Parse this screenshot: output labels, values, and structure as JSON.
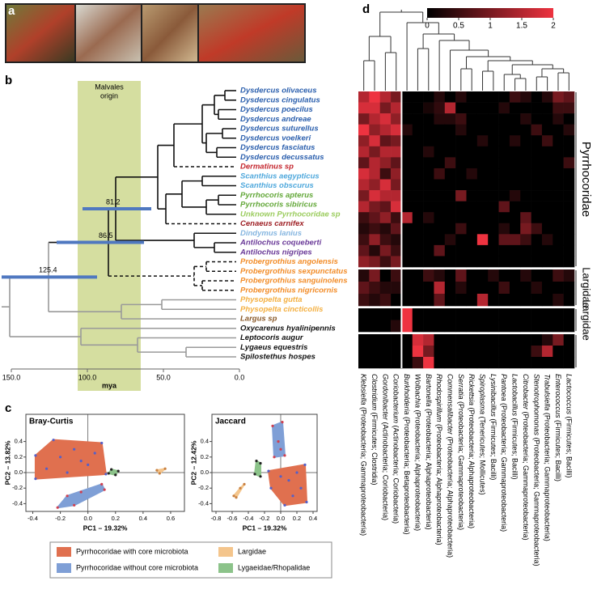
{
  "panel_letters": [
    "a",
    "b",
    "c",
    "d"
  ],
  "tree": {
    "band_label": [
      "Malvales",
      "origin"
    ],
    "axis_label": "mya",
    "axis_ticks": [
      "150.0",
      "100.0",
      "50.0",
      "0.0"
    ],
    "node_labels": [
      "81.2",
      "86.5",
      "125.4"
    ],
    "tips": [
      {
        "name": "Dysdercus olivaceus",
        "color": "#2b5fad"
      },
      {
        "name": "Dysdercus cingulatus",
        "color": "#2b5fad"
      },
      {
        "name": "Dysdercus poecilus",
        "color": "#2b5fad"
      },
      {
        "name": "Dysdercus andreae",
        "color": "#2b5fad"
      },
      {
        "name": "Dysdercus suturellus",
        "color": "#2b5fad"
      },
      {
        "name": "Dysdercus voelkeri",
        "color": "#2b5fad"
      },
      {
        "name": "Dysdercus fasciatus",
        "color": "#2b5fad"
      },
      {
        "name": "Dysdercus decussatus",
        "color": "#2b5fad"
      },
      {
        "name": "Dermatinus sp",
        "color": "#c4262e"
      },
      {
        "name": "Scanthius aegypticus",
        "color": "#4fa8dc"
      },
      {
        "name": "Scanthius obscurus",
        "color": "#4fa8dc"
      },
      {
        "name": "Pyrrhocoris apterus",
        "color": "#64a83a"
      },
      {
        "name": "Pyrrhocoris sibiricus",
        "color": "#64a83a"
      },
      {
        "name": "Unknown Pyrrhocoridae sp",
        "color": "#9bcc5e"
      },
      {
        "name": "Cenaeus carnifex",
        "color": "#9e1f24"
      },
      {
        "name": "Dindymus lanius",
        "color": "#86b6e0"
      },
      {
        "name": "Antilochus coqueberti",
        "color": "#6a3a98"
      },
      {
        "name": "Antilochus nigripes",
        "color": "#6a3a98"
      },
      {
        "name": "Probergrothius angolensis",
        "color": "#f28c28"
      },
      {
        "name": "Probergrothius sexpunctatus",
        "color": "#f28c28"
      },
      {
        "name": "Probergrothius sanguinolens",
        "color": "#f28c28"
      },
      {
        "name": "Probergrothius nigricornis",
        "color": "#f28c28"
      },
      {
        "name": "Physopelta gutta",
        "color": "#f4b042"
      },
      {
        "name": "Physopelta cincticollis",
        "color": "#f4b042"
      },
      {
        "name": "Largus sp",
        "color": "#8a5a2a"
      },
      {
        "name": "Oxycarenus hyalinipennis",
        "color": "#111111"
      },
      {
        "name": "Leptocoris augur",
        "color": "#111111"
      },
      {
        "name": "Lygaeus equestris",
        "color": "#111111"
      },
      {
        "name": "Spilostethus hospes",
        "color": "#111111"
      }
    ]
  },
  "pcoa": {
    "legend": [
      {
        "name": "Pyrrhocoridae with core microbiota",
        "color": "#e0704f"
      },
      {
        "name": "Pyrrhocoridae without core microbiota",
        "color": "#7f9fd6"
      },
      {
        "name": "Largidae",
        "color": "#f4c58c"
      },
      {
        "name": "Lygaeidae/Rhopalidae",
        "color": "#8cc38a"
      }
    ],
    "plots": [
      {
        "type": "scatter",
        "title": "Bray-Curtis",
        "xlabel": "PC1 – 19.32%",
        "ylabel": "PC2 – 13.82%",
        "xlim": [
          -0.45,
          0.7
        ],
        "ylim": [
          -0.5,
          0.75
        ],
        "xticks": [
          -0.4,
          -0.2,
          {
            "value": 0,
            "label": "0.0"
          },
          0.2,
          0.4,
          0.6
        ],
        "yticks": [
          -0.4,
          -0.2,
          {
            "value": 0,
            "label": "0.0"
          },
          0.2,
          0.4
        ],
        "series": [
          {
            "color": "#e0704f",
            "point_color": "#5560c8",
            "points": [
              [
                -0.25,
                0.42
              ],
              [
                0.1,
                0.38
              ],
              [
                0.13,
                -0.02
              ],
              [
                -0.38,
                -0.08
              ],
              [
                -0.38,
                0.22
              ],
              [
                -0.2,
                0.2
              ],
              [
                -0.1,
                0.3
              ],
              [
                0,
                0.1
              ],
              [
                -0.3,
                0.05
              ],
              [
                -0.15,
                0
              ],
              [
                0.05,
                0.25
              ],
              [
                -0.05,
                0.15
              ]
            ]
          },
          {
            "color": "#7f9fd6",
            "point_color": "#d04050",
            "points": [
              [
                -0.22,
                -0.45
              ],
              [
                -0.1,
                -0.42
              ],
              [
                0.12,
                -0.22
              ],
              [
                0.1,
                -0.15
              ],
              [
                -0.05,
                -0.25
              ],
              [
                -0.15,
                -0.3
              ]
            ]
          },
          {
            "color": "#8cc38a",
            "point_color": "#222222",
            "points": [
              [
                0.15,
                -0.01
              ],
              [
                0.22,
                0.02
              ],
              [
                0.17,
                0.04
              ],
              [
                0.2,
                -0.03
              ]
            ]
          },
          {
            "color": "#f4c58c",
            "point_color": "#c88040",
            "points": [
              [
                0.5,
                0.03
              ],
              [
                0.56,
                0.05
              ],
              [
                0.52,
                -0.01
              ]
            ]
          }
        ]
      },
      {
        "type": "scatter",
        "title": "Jaccard",
        "xlabel": "PC1 – 19.32%",
        "ylabel": "PC2 – 12.42%",
        "xlim": [
          -0.85,
          0.45
        ],
        "ylim": [
          -0.5,
          0.75
        ],
        "xticks": [
          -0.8,
          -0.6,
          -0.4,
          -0.2,
          {
            "value": 0,
            "label": "0.0"
          },
          0.2,
          0.4
        ],
        "yticks": [
          -0.4,
          -0.2,
          {
            "value": 0,
            "label": "0.0"
          },
          0.2,
          0.4
        ],
        "series": [
          {
            "color": "#e0704f",
            "point_color": "#5560c8",
            "points": [
              [
                -0.15,
                0.02
              ],
              [
                0.3,
                0.1
              ],
              [
                0.32,
                -0.38
              ],
              [
                0.05,
                -0.42
              ],
              [
                -0.12,
                -0.2
              ],
              [
                0.1,
                -0.1
              ],
              [
                0.2,
                0
              ],
              [
                0.25,
                -0.2
              ],
              [
                0,
                -0.05
              ],
              [
                0.15,
                -0.3
              ]
            ]
          },
          {
            "color": "#7f9fd6",
            "point_color": "#d04050",
            "points": [
              [
                -0.1,
                0.6
              ],
              [
                0.02,
                0.65
              ],
              [
                0.05,
                0.22
              ],
              [
                -0.08,
                0.2
              ],
              [
                -0.03,
                0.4
              ],
              [
                0,
                0.3
              ]
            ]
          },
          {
            "color": "#8cc38a",
            "point_color": "#222222",
            "points": [
              [
                -0.3,
                0.15
              ],
              [
                -0.25,
                0.12
              ],
              [
                -0.25,
                -0.05
              ],
              [
                -0.32,
                -0.02
              ]
            ]
          },
          {
            "color": "#f4c58c",
            "point_color": "#c88040",
            "points": [
              [
                -0.55,
                -0.32
              ],
              [
                -0.5,
                -0.2
              ],
              [
                -0.45,
                -0.15
              ],
              [
                -0.58,
                -0.3
              ]
            ]
          }
        ]
      }
    ]
  },
  "heatmap": {
    "clim": [
      0,
      2
    ],
    "colorbar_ticks": [
      0,
      0.5,
      1,
      1.5,
      2
    ],
    "columns": [
      {
        "genus": "Klebsiella",
        "taxon": " (Proteobacteria; Gammaproteobacteria)"
      },
      {
        "genus": "Clostridium",
        "taxon": " (Firmicutes; Clostridia)"
      },
      {
        "genus": "Gordonibacter",
        "taxon": " (Actinobacteria; Coriobacteria)"
      },
      {
        "genus": "Coriobacterium",
        "taxon": " (Actinobacteria; Coriobacteria)"
      },
      {
        "genus": "Burkholderia",
        "taxon": " (Proteobacteria; Betaproteobacteria)"
      },
      {
        "genus": "Wolbachia",
        "taxon": " (Proteobacteria; Alphaproteobacteria)"
      },
      {
        "genus": "Bartonella",
        "taxon": " (Proteobacteria; Alphaproteobacteria)"
      },
      {
        "genus": "Rhodospirillum",
        "taxon": " (Proteobacteria; Alphaproteobacteria)"
      },
      {
        "genus": "Commensalibacter",
        "taxon": " (Proteobacteria; Alphaproteobacteria)"
      },
      {
        "genus": "Serratia",
        "taxon": " (Proteobacteria; Gammaproteobacteria)"
      },
      {
        "genus": "Rickettsia",
        "taxon": " (Proteobacteria; Alphaproteobacteria)"
      },
      {
        "genus": "Spiroplasma",
        "taxon": " (Tenericutes; Mollicutes)"
      },
      {
        "genus": "Lysinibacillus",
        "taxon": " (Firmicutes; Bacilli)"
      },
      {
        "genus": "Pantoea",
        "taxon": " (Proteobacteria; Gammaproteobacteria)"
      },
      {
        "genus": "Lactobacillus",
        "taxon": " (Firmicutes; Bacilli)"
      },
      {
        "genus": "Citrobacter",
        "taxon": " (Proteobacteria; Gammaproteobacteria)"
      },
      {
        "genus": "Stenotrophomonas",
        "taxon": " (Proteobacteria; Gammaproteobacteria)"
      },
      {
        "genus": "Trabulsiella",
        "taxon": " (Proteobacteria; Gammaproteobacteria)"
      },
      {
        "genus": "Enterococcus",
        "taxon": " (Firmicutes; Bacilli)"
      },
      {
        "genus": "Lactococcus",
        "taxon": " (Firmicutes; Bacilli)"
      }
    ],
    "groups": [
      {
        "label": "Pyrrhocoridae",
        "rows": [
          [
            1.5,
            2,
            1.5,
            1,
            0,
            0,
            0,
            0.3,
            0,
            0.3,
            0,
            0,
            0,
            0,
            0.5,
            0.3,
            0,
            0.3,
            1,
            0.8
          ],
          [
            1.8,
            1.8,
            1,
            1.5,
            0,
            0,
            0.2,
            0.4,
            1.5,
            0,
            0,
            0,
            0,
            0.3,
            0,
            0,
            0,
            0,
            0.5,
            0.5
          ],
          [
            1,
            1.5,
            1.8,
            1.2,
            0,
            0,
            0,
            0.3,
            0.3,
            0.5,
            0,
            0,
            0,
            0,
            0,
            0.3,
            0,
            0,
            0.3,
            0
          ],
          [
            2,
            1.2,
            1.5,
            1.8,
            0.3,
            0,
            0,
            0,
            0,
            0.3,
            0,
            0,
            0,
            0,
            0,
            0,
            0.5,
            0,
            0,
            0.3
          ],
          [
            1.2,
            1.8,
            0.8,
            1,
            0,
            0,
            0,
            0,
            0,
            0,
            0,
            0.3,
            0,
            0,
            0.3,
            0,
            0,
            0.5,
            0,
            0
          ],
          [
            1.5,
            1,
            1.5,
            1.5,
            0,
            0,
            0.3,
            0,
            0,
            0,
            0,
            0,
            0,
            0,
            0,
            0,
            0,
            0,
            0,
            0
          ],
          [
            0.8,
            1.5,
            1.2,
            0.8,
            0,
            0,
            0,
            0,
            0.5,
            0,
            0,
            0,
            0,
            0,
            0,
            0,
            0,
            0,
            0,
            0.5
          ],
          [
            1.8,
            1.5,
            0.5,
            1.2,
            0,
            0,
            0,
            0.5,
            0,
            0,
            0.3,
            0,
            0,
            0,
            0,
            0,
            0,
            0,
            0,
            0
          ],
          [
            1.5,
            1.2,
            1.8,
            1,
            0,
            0,
            0,
            0,
            0,
            0,
            0,
            0,
            0,
            0,
            0,
            0,
            0,
            0,
            0,
            0
          ],
          [
            1,
            1.8,
            1.5,
            1.5,
            0,
            0,
            0,
            0,
            0,
            1,
            0,
            0,
            0,
            0,
            0.3,
            0,
            0,
            0,
            0,
            0
          ],
          [
            1.5,
            1,
            0.8,
            1.8,
            0,
            0,
            0,
            0,
            0,
            0,
            0,
            0,
            0,
            0.8,
            0,
            0,
            0,
            0,
            0,
            0
          ],
          [
            0.5,
            0.8,
            1.2,
            0.5,
            1.5,
            0,
            0.3,
            0,
            0,
            0,
            0,
            0,
            0,
            0,
            0,
            0.8,
            0,
            0,
            0,
            0
          ],
          [
            0.3,
            0.5,
            0.3,
            0.8,
            0,
            0,
            0,
            0,
            0,
            0.5,
            0,
            0,
            0,
            0.3,
            0,
            1,
            0.5,
            0,
            0,
            0
          ],
          [
            0.5,
            1.2,
            0.5,
            0.3,
            0,
            0,
            0,
            0,
            0.3,
            0,
            0,
            2,
            0,
            0.8,
            0.8,
            0.5,
            0,
            0.3,
            0,
            0
          ],
          [
            0.8,
            0.3,
            1,
            0.5,
            0,
            0,
            0,
            0.8,
            0,
            0,
            0,
            0,
            0,
            0,
            0,
            0,
            0,
            0,
            0,
            0
          ],
          [
            1.2,
            1,
            0.5,
            1,
            0,
            0,
            0,
            0,
            0,
            0,
            0,
            0,
            0,
            0,
            0,
            0,
            0,
            0,
            0,
            0
          ]
        ]
      },
      {
        "label": "Largidae",
        "rows": [
          [
            0.3,
            1,
            0,
            0.5,
            0,
            0,
            0.5,
            0.3,
            0,
            0.8,
            0,
            0,
            0.3,
            0,
            0,
            0.3,
            0,
            0,
            0.5,
            0.3
          ],
          [
            0.8,
            0.5,
            0.3,
            0.3,
            0,
            0,
            0,
            1.5,
            0,
            0.3,
            0,
            0,
            0,
            0.5,
            0,
            0,
            0.3,
            0,
            0,
            0
          ],
          [
            0.5,
            0.3,
            0.5,
            0,
            0,
            0,
            0,
            0.8,
            0,
            0,
            0,
            1.5,
            0,
            0,
            0,
            0,
            0,
            0,
            0.3,
            0
          ]
        ]
      },
      {
        "label": "Largidae",
        "rows": [
          [
            0,
            0,
            0,
            0,
            2,
            0,
            0,
            0,
            0,
            0,
            0,
            0,
            0,
            0,
            0,
            0,
            0,
            0,
            0,
            0
          ],
          [
            0,
            0,
            0,
            0.3,
            2,
            0,
            0,
            0,
            0,
            0,
            0,
            0,
            0,
            0,
            0,
            0,
            0,
            0,
            0,
            0
          ]
        ]
      },
      {
        "label": null,
        "rows": [
          [
            0,
            0,
            0,
            0,
            0,
            1.8,
            1.5,
            0,
            0,
            0,
            0,
            0,
            0,
            0,
            0,
            0,
            0,
            0.3,
            1,
            0
          ],
          [
            0,
            0,
            0,
            0,
            0,
            2,
            1,
            0,
            0,
            0,
            0,
            0,
            0,
            0,
            0,
            0,
            0.5,
            1.5,
            0,
            0
          ],
          [
            0,
            0,
            0,
            0,
            0,
            0.5,
            2,
            0,
            0,
            0,
            0,
            0,
            0,
            0,
            0,
            0,
            0,
            0,
            0,
            0
          ]
        ]
      }
    ]
  }
}
